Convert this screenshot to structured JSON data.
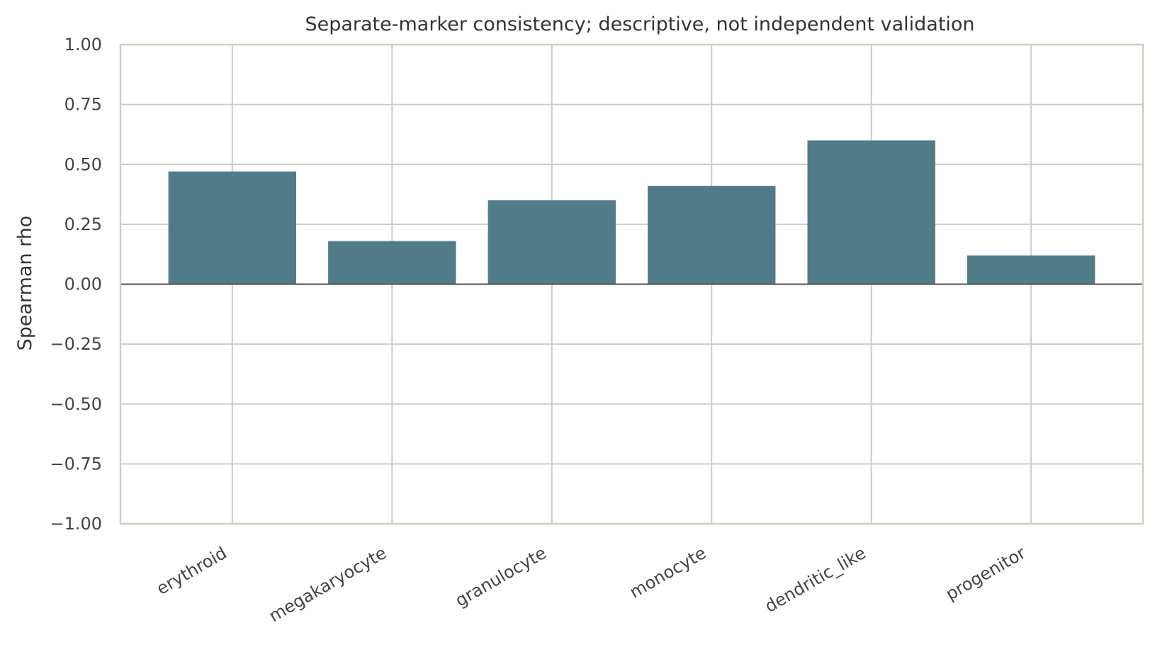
{
  "chart_data": {
    "type": "bar",
    "title": "Separate-marker consistency; descriptive, not independent validation",
    "xlabel": "",
    "ylabel": "Spearman rho",
    "categories": [
      "erythroid",
      "megakaryocyte",
      "granulocyte",
      "monocyte",
      "dendritic_like",
      "progenitor"
    ],
    "values": [
      0.47,
      0.18,
      0.35,
      0.41,
      0.6,
      0.12
    ],
    "ylim": [
      -1.0,
      1.0
    ],
    "yticks": [
      "−1.00",
      "−0.75",
      "−0.50",
      "−0.25",
      "0.00",
      "0.25",
      "0.50",
      "0.75",
      "1.00"
    ],
    "ytick_values": [
      -1.0,
      -0.75,
      -0.5,
      -0.25,
      0.0,
      0.25,
      0.5,
      0.75,
      1.0
    ],
    "grid": true,
    "zero_line": true,
    "colors": {
      "bar": "#527b8a",
      "grid": "#cccccc",
      "spine": "#d0cdc4",
      "zero_line": "#555555"
    }
  }
}
